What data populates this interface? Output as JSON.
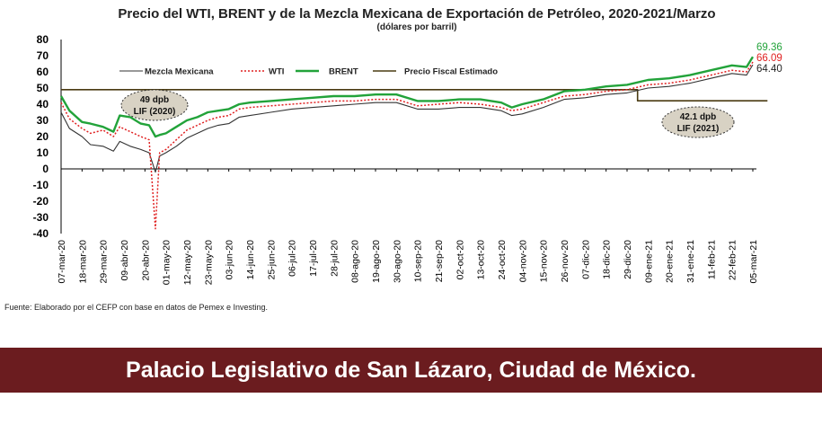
{
  "chart_data": {
    "type": "line",
    "title": "Precio del WTI, BRENT y de la Mezcla Mexicana de Exportación de Petróleo, 2020-2021/Marzo",
    "subtitle": "(dólares por barril)",
    "y_ticks": [
      80,
      70,
      60,
      50,
      40,
      30,
      20,
      10,
      0,
      -10,
      -20,
      -30,
      -40
    ],
    "ylim": [
      -40,
      80
    ],
    "categories": [
      "07-mar-20",
      "18-mar-20",
      "29-mar-20",
      "09-abr-20",
      "20-abr-20",
      "01-may-20",
      "12-may-20",
      "23-may-20",
      "03-jun-20",
      "14-jun-20",
      "25-jun-20",
      "06-jul-20",
      "17-jul-20",
      "28-jul-20",
      "08-ago-20",
      "19-ago-20",
      "30-ago-20",
      "10-sep-20",
      "21-sep-20",
      "02-oct-20",
      "13-oct-20",
      "24-oct-20",
      "04-nov-20",
      "15-nov-20",
      "26-nov-20",
      "07-dic-20",
      "18-dic-20",
      "29-dic-20",
      "09-ene-21",
      "20-ene-21",
      "31-ene-21",
      "11-feb-21",
      "22-feb-21",
      "05-mar-21"
    ],
    "series": [
      {
        "name": "Mezcla Mexicana",
        "color": "#333333",
        "values": [
          {
            "x": 0,
            "y": 35
          },
          {
            "x": 0.4,
            "y": 25
          },
          {
            "x": 1,
            "y": 20
          },
          {
            "x": 1.4,
            "y": 15
          },
          {
            "x": 2,
            "y": 14
          },
          {
            "x": 2.5,
            "y": 11
          },
          {
            "x": 2.8,
            "y": 17
          },
          {
            "x": 3.3,
            "y": 14
          },
          {
            "x": 3.8,
            "y": 12
          },
          {
            "x": 4.2,
            "y": 10
          },
          {
            "x": 4.5,
            "y": -2
          },
          {
            "x": 4.7,
            "y": 8
          },
          {
            "x": 5,
            "y": 10
          },
          {
            "x": 5.5,
            "y": 14
          },
          {
            "x": 6,
            "y": 19
          },
          {
            "x": 6.5,
            "y": 22
          },
          {
            "x": 7,
            "y": 25
          },
          {
            "x": 7.5,
            "y": 27
          },
          {
            "x": 8,
            "y": 28
          },
          {
            "x": 8.5,
            "y": 32
          },
          {
            "x": 9,
            "y": 33
          },
          {
            "x": 10,
            "y": 35
          },
          {
            "x": 11,
            "y": 37
          },
          {
            "x": 12,
            "y": 38
          },
          {
            "x": 13,
            "y": 39
          },
          {
            "x": 14,
            "y": 40
          },
          {
            "x": 15,
            "y": 41
          },
          {
            "x": 16,
            "y": 41
          },
          {
            "x": 17,
            "y": 37
          },
          {
            "x": 18,
            "y": 37
          },
          {
            "x": 19,
            "y": 38
          },
          {
            "x": 20,
            "y": 38
          },
          {
            "x": 21,
            "y": 36
          },
          {
            "x": 21.5,
            "y": 33
          },
          {
            "x": 22,
            "y": 34
          },
          {
            "x": 23,
            "y": 38
          },
          {
            "x": 24,
            "y": 43
          },
          {
            "x": 25,
            "y": 44
          },
          {
            "x": 26,
            "y": 46
          },
          {
            "x": 27,
            "y": 47
          },
          {
            "x": 28,
            "y": 50
          },
          {
            "x": 29,
            "y": 51
          },
          {
            "x": 30,
            "y": 53
          },
          {
            "x": 31,
            "y": 56
          },
          {
            "x": 32,
            "y": 59
          },
          {
            "x": 32.7,
            "y": 58
          },
          {
            "x": 33,
            "y": 64.4
          }
        ]
      },
      {
        "name": "WTI",
        "color": "#e02020",
        "values": [
          {
            "x": 0,
            "y": 41
          },
          {
            "x": 0.4,
            "y": 31
          },
          {
            "x": 1,
            "y": 25
          },
          {
            "x": 1.4,
            "y": 22
          },
          {
            "x": 2,
            "y": 24
          },
          {
            "x": 2.5,
            "y": 20
          },
          {
            "x": 2.8,
            "y": 26
          },
          {
            "x": 3.3,
            "y": 23
          },
          {
            "x": 3.8,
            "y": 20
          },
          {
            "x": 4.2,
            "y": 18
          },
          {
            "x": 4.5,
            "y": -37
          },
          {
            "x": 4.7,
            "y": 10
          },
          {
            "x": 5,
            "y": 12
          },
          {
            "x": 5.5,
            "y": 18
          },
          {
            "x": 6,
            "y": 24
          },
          {
            "x": 6.5,
            "y": 27
          },
          {
            "x": 7,
            "y": 30
          },
          {
            "x": 7.5,
            "y": 32
          },
          {
            "x": 8,
            "y": 33
          },
          {
            "x": 8.5,
            "y": 37
          },
          {
            "x": 9,
            "y": 38
          },
          {
            "x": 10,
            "y": 39
          },
          {
            "x": 11,
            "y": 40
          },
          {
            "x": 12,
            "y": 41
          },
          {
            "x": 13,
            "y": 42
          },
          {
            "x": 14,
            "y": 42
          },
          {
            "x": 15,
            "y": 43
          },
          {
            "x": 16,
            "y": 43
          },
          {
            "x": 17,
            "y": 39
          },
          {
            "x": 18,
            "y": 40
          },
          {
            "x": 19,
            "y": 41
          },
          {
            "x": 20,
            "y": 40
          },
          {
            "x": 21,
            "y": 38
          },
          {
            "x": 21.5,
            "y": 36
          },
          {
            "x": 22,
            "y": 37
          },
          {
            "x": 23,
            "y": 41
          },
          {
            "x": 24,
            "y": 45
          },
          {
            "x": 25,
            "y": 46
          },
          {
            "x": 26,
            "y": 48
          },
          {
            "x": 27,
            "y": 49
          },
          {
            "x": 28,
            "y": 52
          },
          {
            "x": 29,
            "y": 53
          },
          {
            "x": 30,
            "y": 55
          },
          {
            "x": 31,
            "y": 58
          },
          {
            "x": 32,
            "y": 61
          },
          {
            "x": 32.7,
            "y": 60
          },
          {
            "x": 33,
            "y": 66.09
          }
        ]
      },
      {
        "name": "BRENT",
        "color": "#22a33a",
        "values": [
          {
            "x": 0,
            "y": 45
          },
          {
            "x": 0.4,
            "y": 36
          },
          {
            "x": 1,
            "y": 29
          },
          {
            "x": 1.4,
            "y": 28
          },
          {
            "x": 2,
            "y": 26
          },
          {
            "x": 2.5,
            "y": 23
          },
          {
            "x": 2.8,
            "y": 33
          },
          {
            "x": 3.3,
            "y": 32
          },
          {
            "x": 3.8,
            "y": 28
          },
          {
            "x": 4.2,
            "y": 27
          },
          {
            "x": 4.5,
            "y": 20
          },
          {
            "x": 4.7,
            "y": 21
          },
          {
            "x": 5,
            "y": 22
          },
          {
            "x": 5.5,
            "y": 26
          },
          {
            "x": 6,
            "y": 30
          },
          {
            "x": 6.5,
            "y": 32
          },
          {
            "x": 7,
            "y": 35
          },
          {
            "x": 7.5,
            "y": 36
          },
          {
            "x": 8,
            "y": 37
          },
          {
            "x": 8.5,
            "y": 40
          },
          {
            "x": 9,
            "y": 41
          },
          {
            "x": 10,
            "y": 42
          },
          {
            "x": 11,
            "y": 43
          },
          {
            "x": 12,
            "y": 44
          },
          {
            "x": 13,
            "y": 45
          },
          {
            "x": 14,
            "y": 45
          },
          {
            "x": 15,
            "y": 46
          },
          {
            "x": 16,
            "y": 46
          },
          {
            "x": 17,
            "y": 42
          },
          {
            "x": 18,
            "y": 42
          },
          {
            "x": 19,
            "y": 43
          },
          {
            "x": 20,
            "y": 43
          },
          {
            "x": 21,
            "y": 41
          },
          {
            "x": 21.5,
            "y": 38
          },
          {
            "x": 22,
            "y": 40
          },
          {
            "x": 23,
            "y": 43
          },
          {
            "x": 24,
            "y": 48
          },
          {
            "x": 25,
            "y": 49
          },
          {
            "x": 26,
            "y": 51
          },
          {
            "x": 27,
            "y": 52
          },
          {
            "x": 28,
            "y": 55
          },
          {
            "x": 29,
            "y": 56
          },
          {
            "x": 30,
            "y": 58
          },
          {
            "x": 31,
            "y": 61
          },
          {
            "x": 32,
            "y": 64
          },
          {
            "x": 32.7,
            "y": 63
          },
          {
            "x": 33,
            "y": 69.36
          }
        ]
      },
      {
        "name": "Precio Fiscal Estimado",
        "color": "#4a3b12",
        "values": [
          {
            "x": 0,
            "y": 49
          },
          {
            "x": 27.5,
            "y": 49
          },
          {
            "x": 27.5,
            "y": 42.1
          },
          {
            "x": 33.7,
            "y": 42.1
          }
        ]
      }
    ],
    "annotations": [
      {
        "line1": "49 dpb",
        "line2": "LIF (2020)"
      },
      {
        "line1": "42.1 dpb",
        "line2": "LIF (2021)"
      }
    ],
    "end_labels": [
      {
        "text": "69.36",
        "color": "#22a33a"
      },
      {
        "text": "66.09",
        "color": "#e02020"
      },
      {
        "text": "64.40",
        "color": "#222222"
      }
    ],
    "legend_position": "top-left inside plot",
    "grid": false
  },
  "source_note": "Fuente: Elaborado por el CEFP con base en datos de Pemex e Investing.",
  "banner": {
    "text": "Palacio Legislativo de San Lázaro, Ciudad de México.",
    "color": "#6b1c1f"
  }
}
